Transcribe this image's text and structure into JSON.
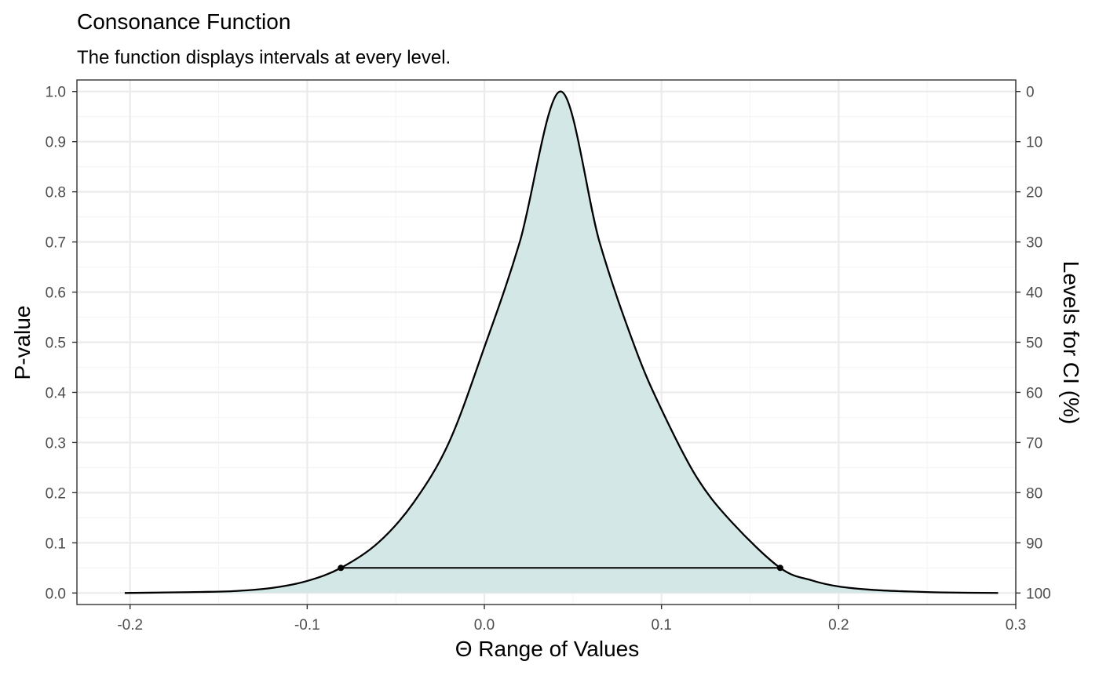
{
  "chart_data": {
    "type": "area",
    "title": "Consonance Function",
    "subtitle": "The function displays intervals at every level.",
    "xlabel": "Θ Range of Values",
    "ylabel": "P-value",
    "ylabel_right": "Levels for CI (%)",
    "xlim": [
      -0.23,
      0.3
    ],
    "ylim": [
      -0.023,
      1.023
    ],
    "x_ticks": [
      -0.2,
      -0.1,
      0.0,
      0.1,
      0.2,
      0.3
    ],
    "x_tick_labels": [
      "-0.2",
      "-0.1",
      "0.0",
      "0.1",
      "0.2",
      "0.3"
    ],
    "y_ticks": [
      0.0,
      0.1,
      0.2,
      0.3,
      0.4,
      0.5,
      0.6,
      0.7,
      0.8,
      0.9,
      1.0
    ],
    "y_tick_labels": [
      "0.0",
      "0.1",
      "0.2",
      "0.3",
      "0.4",
      "0.5",
      "0.6",
      "0.7",
      "0.8",
      "0.9",
      "1.0"
    ],
    "y2_tick_labels": [
      "100",
      "90",
      "80",
      "70",
      "60",
      "50",
      "40",
      "30",
      "20",
      "10",
      "0"
    ],
    "grid": true,
    "series": [
      {
        "x": [
          -0.203,
          -0.18,
          -0.16,
          -0.14,
          -0.12,
          -0.1,
          -0.081,
          -0.06,
          -0.04,
          -0.02,
          0.0,
          0.02,
          0.043,
          0.065,
          0.085,
          0.1,
          0.12,
          0.14,
          0.167,
          0.185,
          0.2,
          0.22,
          0.24,
          0.26,
          0.29
        ],
        "p": [
          0.0,
          0.001,
          0.002,
          0.004,
          0.01,
          0.024,
          0.05,
          0.1,
          0.18,
          0.3,
          0.49,
          0.7,
          1.0,
          0.7,
          0.49,
          0.366,
          0.23,
          0.14,
          0.05,
          0.025,
          0.013,
          0.006,
          0.003,
          0.001,
          0.0
        ]
      }
    ],
    "interval": {
      "level": "95",
      "p": 0.05,
      "lower": -0.081,
      "upper": 0.167
    },
    "colors": {
      "fill": "#d3e7e6",
      "line": "#000000",
      "panel_border": "#333333",
      "grid_major": "#ebebeb",
      "grid_minor": "#f5f5f5"
    }
  }
}
